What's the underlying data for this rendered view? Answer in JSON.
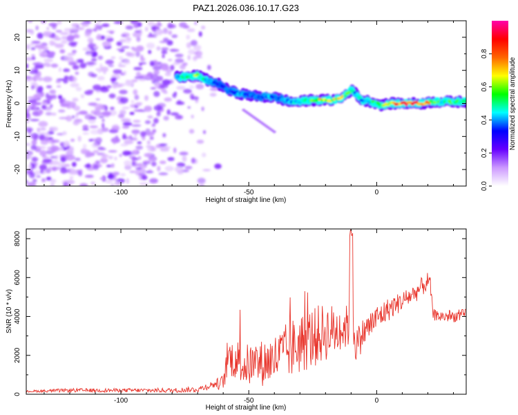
{
  "title": "PAZ1.2026.036.10.17.G23",
  "chart_data": [
    {
      "type": "heatmap",
      "xlabel": "Height of straight line (km)",
      "ylabel": "Frequency (Hz)",
      "xlim": [
        -137,
        35
      ],
      "ylim": [
        -25,
        25
      ],
      "xticks": [
        -100,
        -50,
        0
      ],
      "xtick_labels": [
        "-100",
        "-50",
        "0"
      ],
      "yticks": [
        20,
        10,
        0,
        -10,
        -20
      ],
      "ytick_labels": [
        "20",
        "10",
        "0",
        "-10",
        "-20"
      ],
      "colorbar": {
        "label": "Normalized spectral amplitude",
        "range": [
          0,
          1
        ],
        "ticks": [
          0,
          0.2,
          0.4,
          0.6,
          0.8
        ],
        "tick_labels": [
          "0.0",
          "0.2",
          "0.4",
          "0.6",
          "0.8"
        ],
        "colors": [
          "#ffffff",
          "#cc99ff",
          "#6600ff",
          "#0000ff",
          "#00ffff",
          "#00ff00",
          "#ffff00",
          "#ff6600",
          "#ff0000",
          "#ff00aa"
        ]
      },
      "ridge": {
        "x": [
          -78,
          -74,
          -70,
          -66,
          -62,
          -58,
          -54,
          -50,
          -46,
          -42,
          -38,
          -34,
          -30,
          -26,
          -22,
          -18,
          -14,
          -10,
          -8,
          -6,
          -2,
          2,
          6,
          10,
          14,
          18,
          22,
          26,
          30,
          34
        ],
        "y": [
          8,
          8,
          8.5,
          7,
          6,
          4,
          3,
          2.5,
          2,
          2,
          1.5,
          0.5,
          0.5,
          1,
          1,
          1,
          1.5,
          4,
          3,
          1,
          0.5,
          -0.5,
          0,
          0,
          0,
          0,
          0.5,
          0.5,
          0.5,
          0.5
        ],
        "amplitude": [
          0.4,
          0.5,
          0.6,
          0.4,
          0.35,
          0.35,
          0.4,
          0.35,
          0.35,
          0.4,
          0.35,
          0.4,
          0.45,
          0.55,
          0.65,
          0.6,
          0.65,
          0.5,
          0.4,
          0.45,
          0.5,
          0.6,
          0.7,
          0.85,
          0.9,
          0.85,
          0.6,
          0.5,
          0.55,
          0.6
        ]
      },
      "noise_region_x": [
        -137,
        -68
      ],
      "noise_amplitude": [
        0.05,
        0.2
      ]
    },
    {
      "type": "line",
      "xlabel": "Height of straight line (km)",
      "ylabel": "SNR (10 * v/v)",
      "xlim": [
        -137,
        35
      ],
      "ylim": [
        0,
        8500
      ],
      "xticks": [
        -100,
        -50,
        0
      ],
      "xtick_labels": [
        "-100",
        "-50",
        "0"
      ],
      "yticks": [
        0,
        2000,
        4000,
        6000,
        8000
      ],
      "ytick_labels": [
        "0",
        "2000",
        "4000",
        "6000",
        "8000"
      ],
      "color": "#e8332a",
      "series": [
        {
          "name": "SNR",
          "x": [
            -137,
            -120,
            -100,
            -80,
            -70,
            -64,
            -60,
            -58,
            -55,
            -52,
            -50,
            -45,
            -40,
            -35,
            -30,
            -25,
            -20,
            -15,
            -11,
            -10,
            -9,
            -8,
            -5,
            0,
            5,
            10,
            15,
            20,
            21,
            22,
            25,
            30,
            35
          ],
          "y": [
            150,
            200,
            200,
            200,
            250,
            500,
            600,
            1900,
            1800,
            1500,
            1500,
            1600,
            1800,
            2200,
            2600,
            2900,
            3200,
            3300,
            3500,
            8300,
            3200,
            2500,
            3200,
            3900,
            4400,
            4800,
            5200,
            5800,
            5600,
            4100,
            4000,
            4000,
            4100
          ],
          "noise_amplitude": [
            50,
            100,
            100,
            120,
            150,
            200,
            400,
            900,
            1100,
            1100,
            1100,
            1200,
            1300,
            1500,
            1600,
            1600,
            1500,
            1300,
            1100,
            0,
            1000,
            900,
            800,
            700,
            600,
            500,
            500,
            500,
            400,
            300,
            300,
            300,
            300
          ]
        }
      ]
    }
  ]
}
